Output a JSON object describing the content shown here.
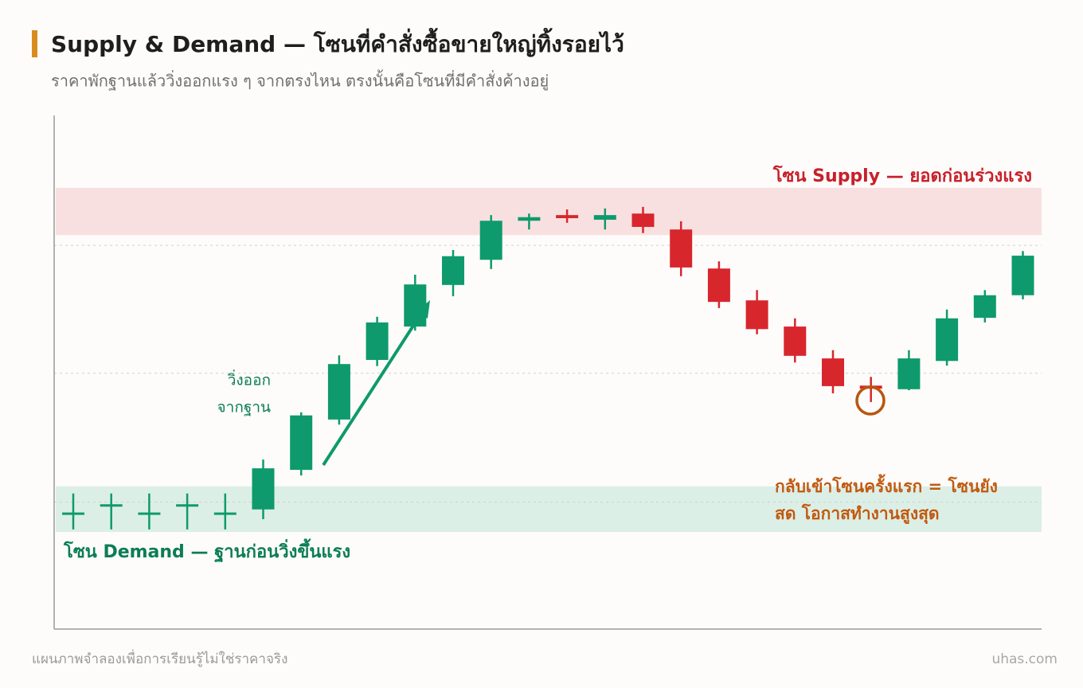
{
  "chart_data": {
    "type": "candlestick",
    "title": "Supply & Demand — โซนที่คำสั่งซื้อขายใหญ่ทิ้งรอยไว้",
    "subtitle": "ราคาพักฐานแล้ววิ่งออกแรง ๆ จากตรงไหน ตรงนั้นคือโซนที่มีคำสั่งค้างอยู่",
    "ylim": [
      0,
      100
    ],
    "up_color": "#0e9a6c",
    "down_color": "#d8262d",
    "open": [
      22.3,
      24.0,
      22.3,
      24.0,
      22.3,
      23.3,
      31.0,
      40.8,
      52.4,
      58.9,
      67.0,
      71.9,
      79.5,
      80.6,
      79.7,
      80.9,
      77.8,
      70.2,
      64.0,
      58.9,
      52.7,
      47.4,
      46.7,
      52.2,
      60.6,
      65.0
    ],
    "high": [
      26.4,
      26.4,
      26.4,
      26.4,
      26.4,
      33.0,
      42.2,
      53.3,
      60.8,
      69.0,
      73.8,
      80.6,
      80.9,
      81.7,
      81.9,
      82.2,
      79.4,
      71.6,
      66.0,
      60.5,
      54.3,
      49.1,
      54.3,
      62.2,
      66.0,
      73.6
    ],
    "low": [
      19.4,
      19.4,
      19.4,
      19.4,
      19.4,
      21.4,
      29.9,
      39.8,
      51.2,
      58.1,
      64.8,
      70.1,
      77.8,
      79.1,
      77.8,
      77.1,
      68.7,
      62.5,
      57.4,
      51.9,
      45.9,
      44.2,
      46.5,
      51.3,
      59.7,
      64.2
    ],
    "close": [
      22.7,
      24.3,
      22.7,
      24.3,
      22.7,
      31.3,
      41.6,
      51.6,
      59.7,
      67.1,
      72.6,
      79.5,
      80.2,
      80.0,
      80.6,
      78.3,
      70.4,
      63.7,
      58.4,
      53.2,
      47.3,
      46.8,
      52.7,
      60.5,
      65.0,
      72.7
    ],
    "guide_lines": [
      74.7,
      49.8,
      24.7
    ],
    "zones": [
      {
        "name": "โซน Supply — ยอดก่อนร่วงแรง",
        "range": [
          76.7,
          85.9
        ],
        "color": "#f9e0e0",
        "label_color": "#c8202a"
      },
      {
        "name": "โซน Demand — ฐานก่อนวิ่งขึ้นแรง",
        "range": [
          18.9,
          27.8
        ],
        "color": "#dcefe7",
        "label_color": "#0b7d57"
      }
    ],
    "annotations": [
      {
        "lines": [
          "วิ่งออก",
          "จากฐาน"
        ],
        "color": "#0b7d57"
      },
      {
        "lines": [
          "กลับเข้าโซนครั้งแรก = โซนยัง",
          "สด โอกาสทำงานสูงสุด"
        ],
        "color": "#c2590f"
      }
    ]
  },
  "footer": {
    "note": "แผนภาพจำลองเพื่อการเรียนรู้ไม่ใช่ราคาจริง",
    "credit": "uhas.com"
  }
}
